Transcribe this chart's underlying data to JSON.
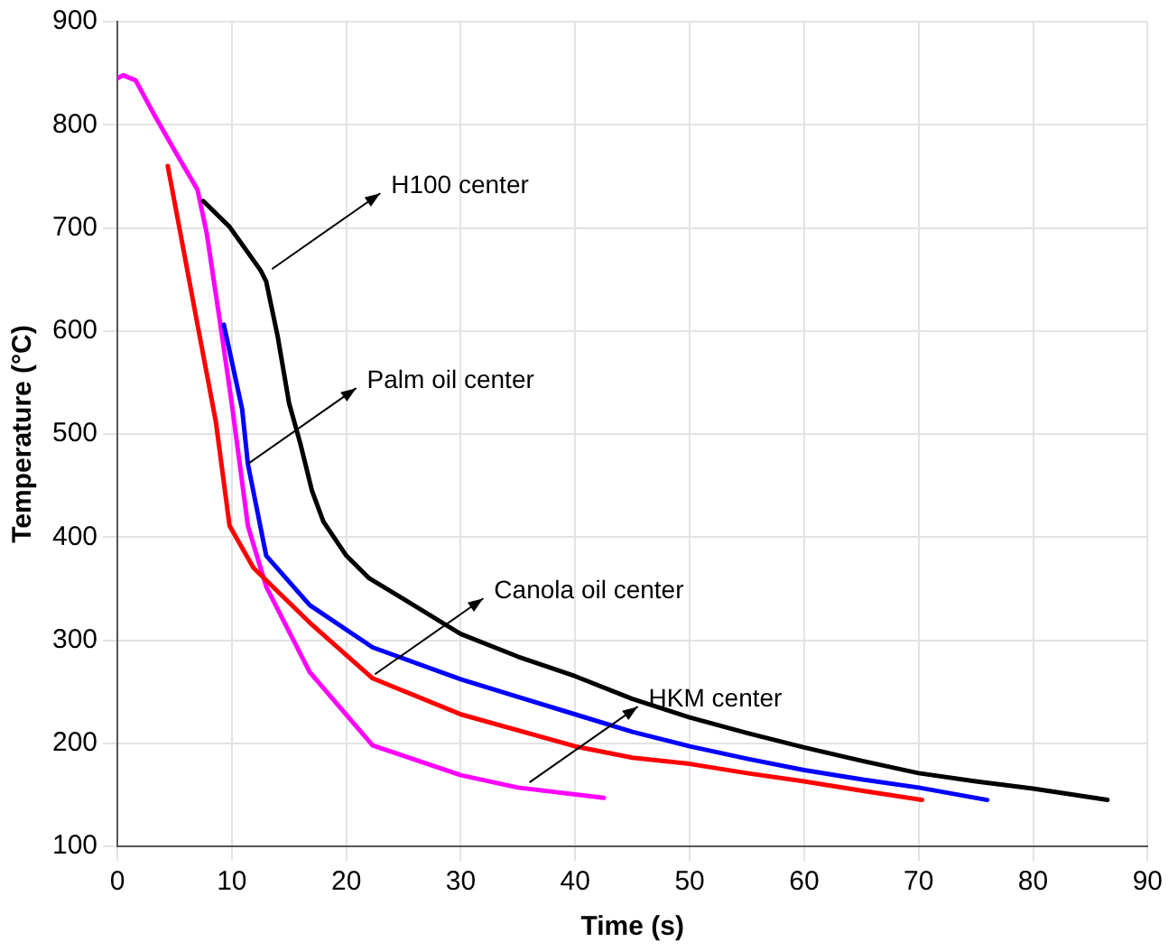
{
  "chart_data": {
    "type": "line",
    "xlabel": "Time (s)",
    "ylabel": "Temperature (°C)",
    "xlim": [
      0,
      90
    ],
    "xticks": [
      0,
      10,
      20,
      30,
      40,
      50,
      60,
      70,
      80,
      90
    ],
    "ylim": [
      100,
      900
    ],
    "yticks": [
      100,
      200,
      300,
      400,
      500,
      600,
      700,
      800,
      900
    ],
    "grid": true,
    "legend": false,
    "marker": "none",
    "line_style": "solid",
    "series": [
      {
        "color": "#000000",
        "x": [
          7.5,
          9.8,
          12.5,
          13,
          14,
          15,
          16,
          17,
          18,
          20,
          22,
          25,
          30,
          35,
          40,
          45,
          50,
          55,
          60,
          65,
          70,
          75,
          80,
          86.5
        ],
        "values": [
          726,
          701,
          659,
          648,
          595,
          530,
          490,
          445,
          415,
          382,
          360,
          340,
          306,
          284,
          265,
          243,
          225,
          210,
          196,
          183,
          171,
          163,
          156,
          145
        ]
      },
      {
        "color": "#0000ff",
        "x": [
          9.3,
          10.9,
          11.4,
          13,
          16.8,
          22.3,
          30,
          35,
          40,
          45,
          50,
          55,
          60,
          65,
          70,
          76
        ],
        "values": [
          606,
          524,
          471,
          382,
          334,
          293,
          262,
          245,
          228,
          211,
          197,
          185,
          174,
          165,
          157,
          145
        ]
      },
      {
        "color": "#ff0000",
        "x": [
          4.4,
          5.4,
          7,
          8.6,
          9.8,
          11.9,
          16.8,
          22.3,
          30,
          40,
          45,
          50,
          55,
          60,
          65,
          70.3
        ],
        "values": [
          760,
          701,
          606,
          512,
          411,
          370,
          317,
          263,
          228,
          197,
          186,
          180,
          171,
          163,
          154,
          145
        ]
      },
      {
        "color": "#ff00ff",
        "x": [
          0,
          0.5,
          1.6,
          3.3,
          5,
          7,
          7.8,
          9.0,
          10.0,
          11.4,
          13,
          16.8,
          22.3,
          30,
          35,
          42.5
        ],
        "values": [
          845,
          848,
          843,
          808,
          775,
          737,
          695,
          606,
          529,
          411,
          352,
          269,
          198,
          169,
          157,
          147
        ]
      }
    ],
    "annotations": [
      {
        "text": "H100 center",
        "x": 13.5,
        "y": 660
      },
      {
        "text": "Palm oil center",
        "x": 11.4,
        "y": 471
      },
      {
        "text": "Canola oil center",
        "x": 22.5,
        "y": 267
      },
      {
        "text": "HKM center",
        "x": 36,
        "y": 162
      }
    ]
  }
}
